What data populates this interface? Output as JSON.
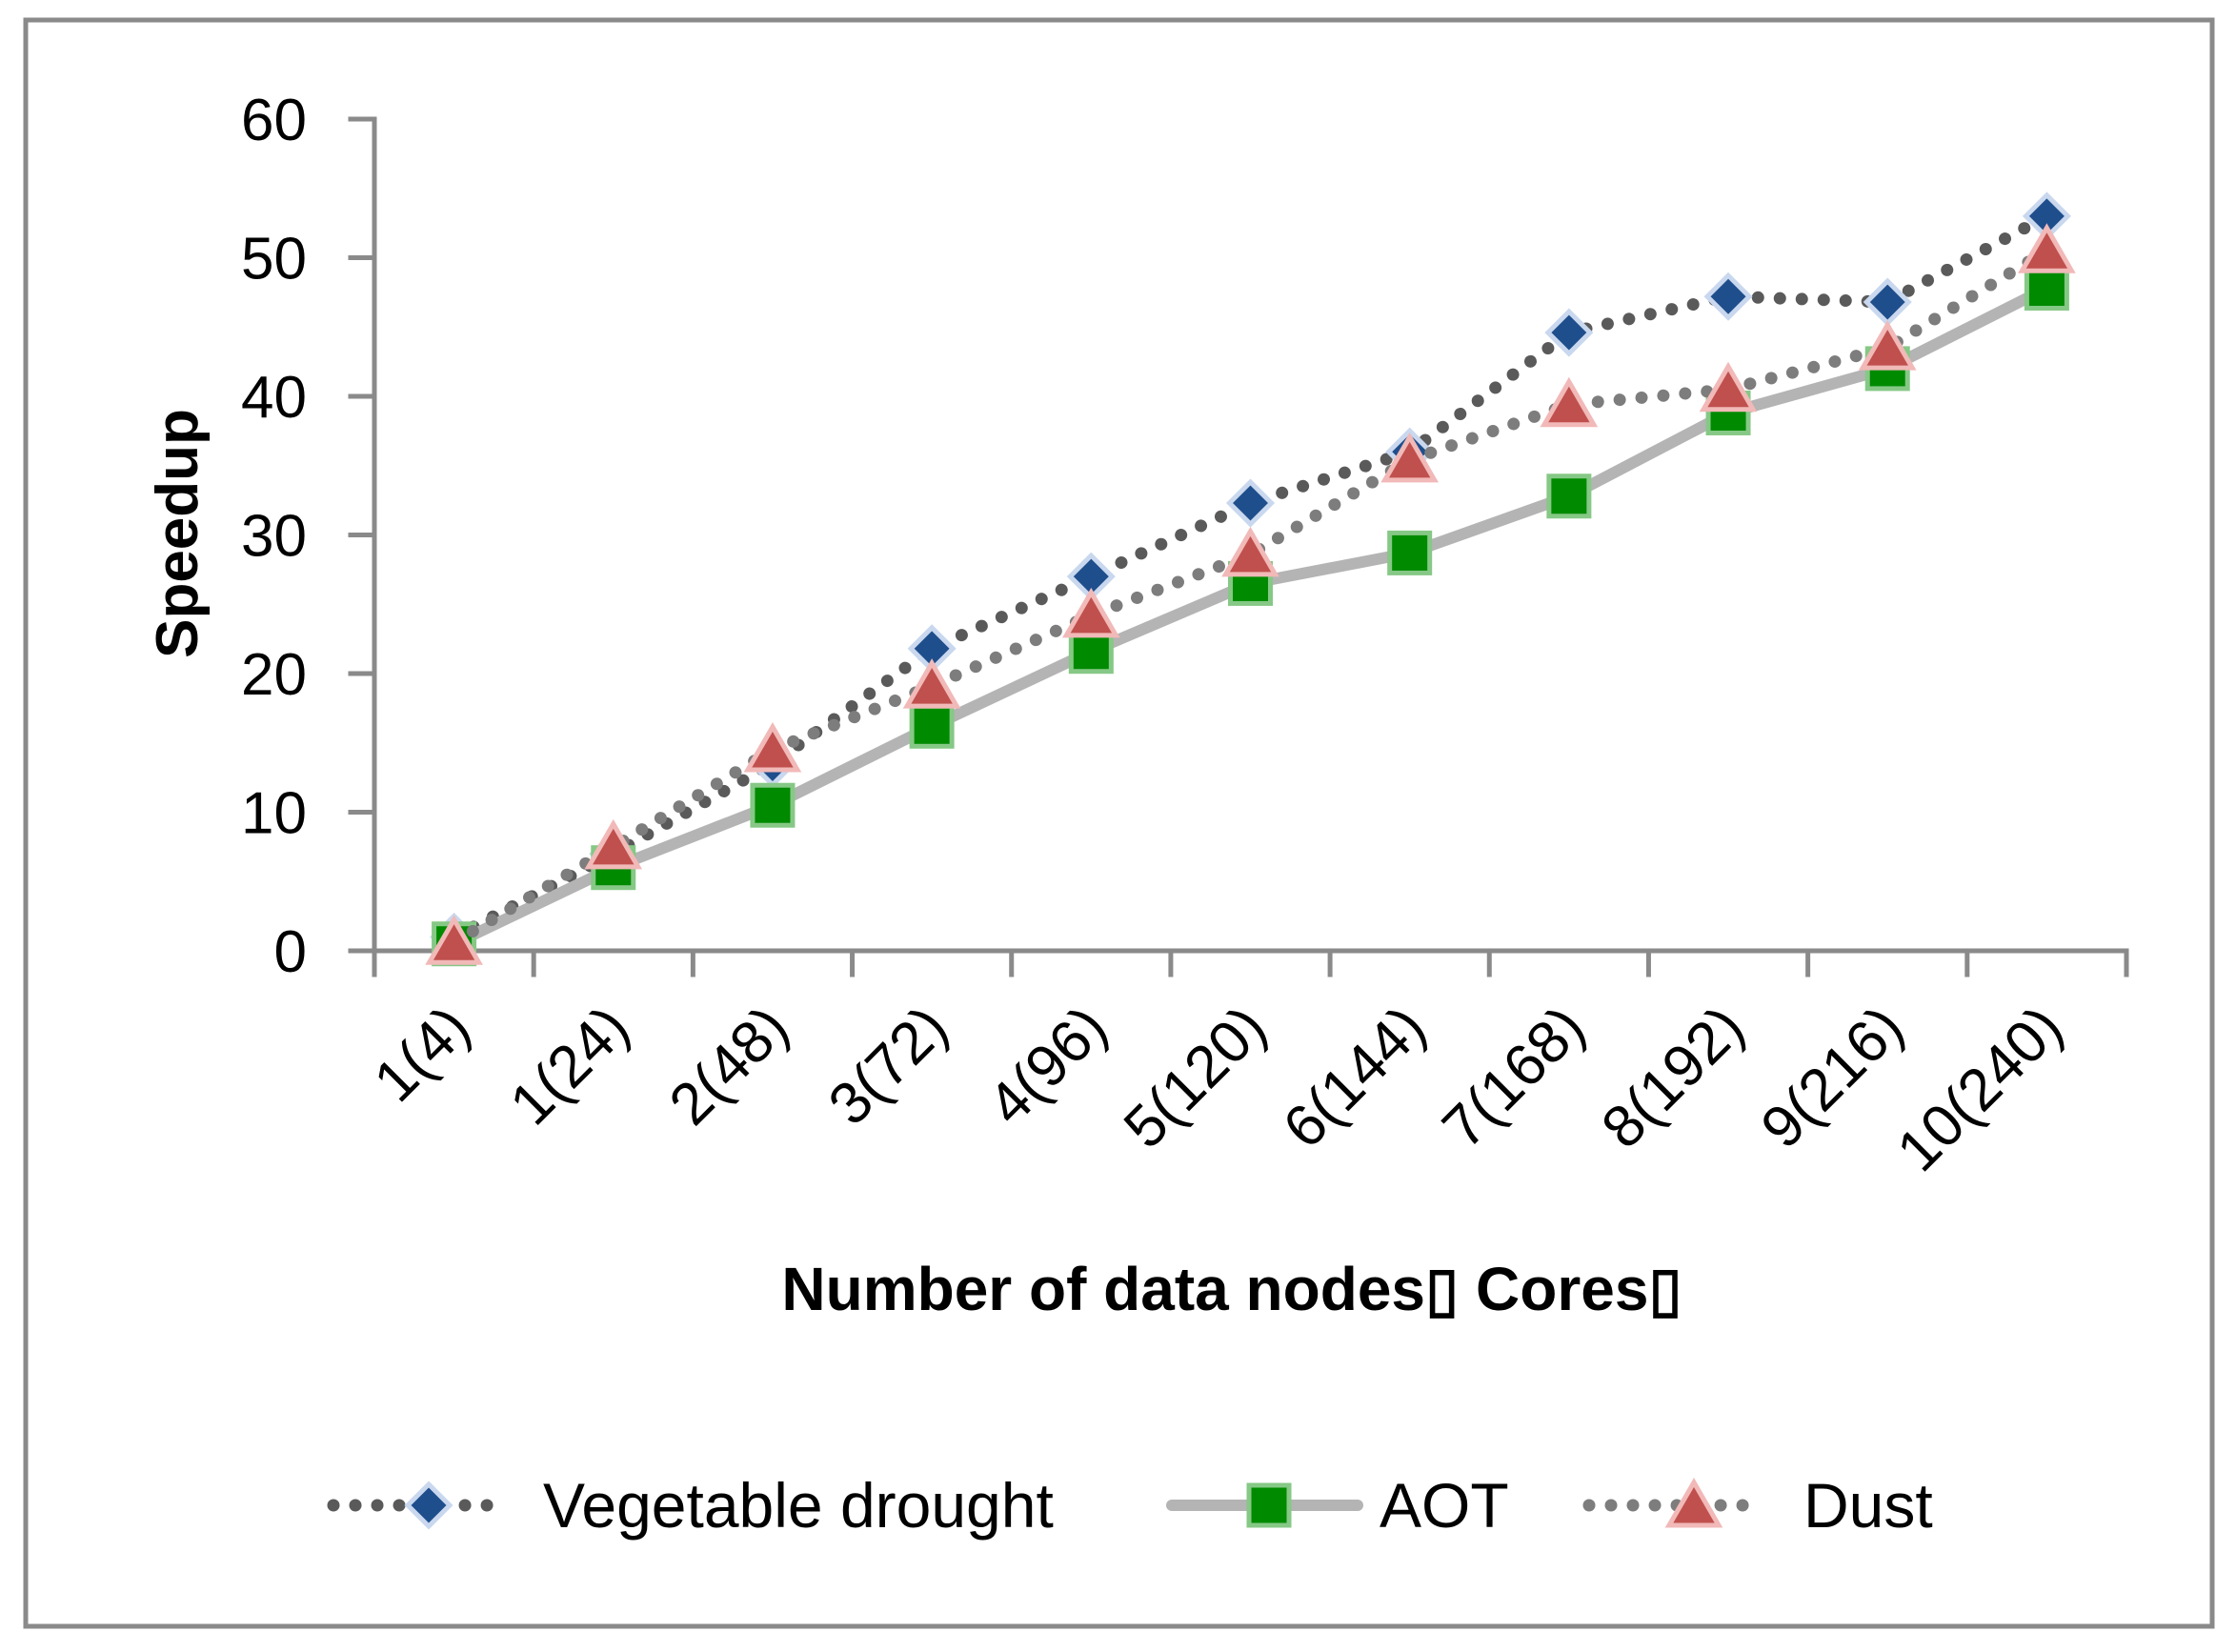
{
  "chart_data": {
    "type": "line",
    "xlabel": "Number of data nodes▯ Cores▯",
    "ylabel": "Speedup",
    "categories": [
      "1(4)",
      "1(24)",
      "2(48)",
      "3(72)",
      "4(96)",
      "5(120)",
      "6(144)",
      "7(168)",
      "8(192)",
      "9(216)",
      "10(240)"
    ],
    "ylim": [
      0,
      60
    ],
    "yticks": [
      0,
      10,
      20,
      30,
      40,
      50,
      60
    ],
    "grid": false,
    "legend": "bottom",
    "series": [
      {
        "name": "Vegetable drought",
        "marker": "diamond",
        "dotted": true,
        "line_color": "#5a5a5a",
        "marker_color": "#1f4e8c",
        "marker_edge": "#c9d8ee",
        "values": [
          1,
          7,
          13.5,
          21.8,
          27,
          32.3,
          36,
          44.6,
          47.2,
          46.8,
          53
        ]
      },
      {
        "name": "AOT",
        "marker": "square",
        "dotted": false,
        "line_color": "#b4b4b4",
        "marker_color": "#008a00",
        "marker_edge": "#86c886",
        "values": [
          0.5,
          6,
          10.5,
          16.2,
          21.6,
          26.5,
          28.7,
          32.8,
          38.8,
          42,
          47.8
        ]
      },
      {
        "name": "Dust",
        "marker": "triangle",
        "dotted": true,
        "line_color": "#7d7d7d",
        "marker_color": "#c0504d",
        "marker_edge": "#f1b9b8",
        "values": [
          0.6,
          7.5,
          14.5,
          19.1,
          24.2,
          28.6,
          35.4,
          39.4,
          40.5,
          43.5,
          50.5
        ]
      }
    ]
  }
}
